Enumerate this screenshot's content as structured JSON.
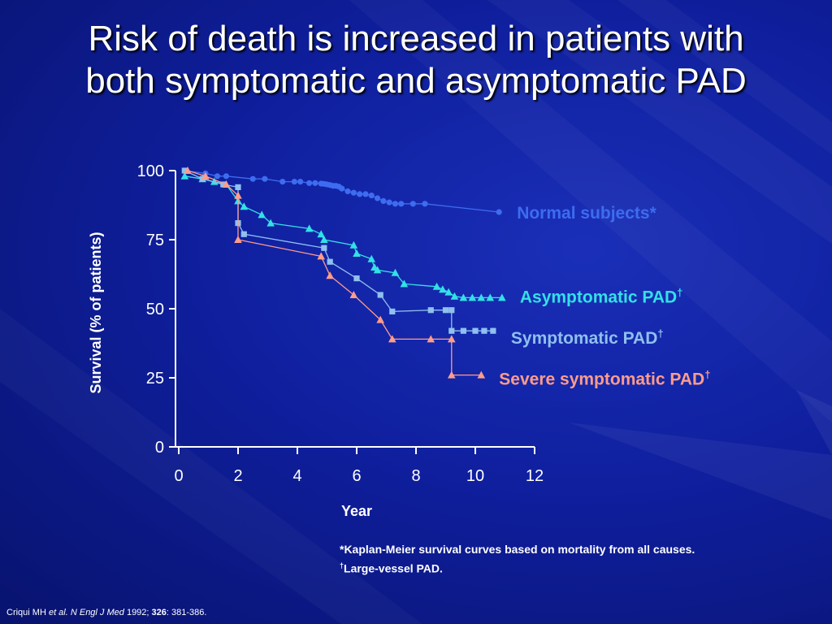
{
  "title": {
    "line1": "Risk of death is increased in patients with",
    "line2": "both symptomatic and asymptomatic PAD"
  },
  "footnote": {
    "line1": "*Kaplan-Meier survival curves based on mortality from all causes.",
    "line2_mark": "†",
    "line2": "Large-vessel PAD."
  },
  "citation": {
    "author": "Criqui MH ",
    "etal": "et al. N Engl J Med",
    "year": " 1992; ",
    "volume": "326",
    "pages": ": 381-386."
  },
  "colors": {
    "normal": "#3d6cf0",
    "asymptomatic": "#33e0e6",
    "symptomatic": "#8fc0ee",
    "severe": "#ff9c8a"
  },
  "chart_data": {
    "type": "line",
    "xlabel": "Year",
    "ylabel": "Survival (% of patients)",
    "xlim": [
      0,
      12
    ],
    "ylim": [
      0,
      100
    ],
    "xticks": [
      0,
      2,
      4,
      6,
      8,
      10,
      12
    ],
    "yticks": [
      0,
      25,
      50,
      75,
      100
    ],
    "series": [
      {
        "name": "Normal subjects*",
        "key": "normal",
        "marker": "circle",
        "x": [
          0.2,
          0.9,
          1.3,
          1.6,
          2.5,
          2.9,
          3.5,
          3.9,
          4.1,
          4.4,
          4.6,
          4.8,
          4.9,
          5.0,
          5.1,
          5.2,
          5.3,
          5.4,
          5.5,
          5.7,
          5.9,
          6.1,
          6.3,
          6.5,
          6.7,
          6.9,
          7.1,
          7.3,
          7.5,
          7.9,
          8.3,
          10.8
        ],
        "y": [
          100,
          99,
          98,
          98,
          97,
          97,
          96,
          96,
          96,
          95.5,
          95.5,
          95.3,
          95.2,
          95,
          94.8,
          94.5,
          94.5,
          94.2,
          93.5,
          92.5,
          92,
          91.5,
          91.5,
          91,
          90,
          89,
          88.5,
          88,
          88,
          88,
          88,
          85
        ],
        "label": "Normal subjects*"
      },
      {
        "name": "Asymptomatic PAD†",
        "key": "asymptomatic",
        "marker": "triangle",
        "x": [
          0.2,
          0.8,
          1.2,
          1.6,
          2.0,
          2.2,
          2.8,
          3.1,
          4.4,
          4.8,
          4.9,
          5.9,
          6.0,
          6.5,
          6.6,
          6.7,
          7.3,
          7.6,
          8.7,
          8.9,
          9.1,
          9.3,
          9.6,
          9.9,
          10.2,
          10.5,
          10.9
        ],
        "y": [
          98,
          97,
          96,
          95,
          89,
          87,
          84,
          81,
          79,
          77,
          75,
          73,
          70,
          68,
          65,
          64,
          63,
          59,
          58,
          57,
          56,
          54.5,
          54,
          54,
          54,
          54,
          54
        ],
        "label": "Asymptomatic PAD",
        "mark": "†"
      },
      {
        "name": "Symptomatic PAD†",
        "key": "symptomatic",
        "marker": "square",
        "x": [
          0.2,
          0.8,
          1.5,
          2.0,
          2.0,
          2.2,
          4.9,
          5.1,
          6.0,
          6.8,
          7.2,
          8.5,
          9.0,
          9.2,
          9.2,
          9.6,
          10.0,
          10.3,
          10.6
        ],
        "y": [
          100,
          97,
          95,
          94,
          81,
          77,
          72,
          67,
          61,
          55,
          49,
          49.5,
          49.5,
          49.5,
          42,
          42,
          42,
          42,
          42
        ],
        "label": "Symptomatic PAD",
        "mark": "†"
      },
      {
        "name": "Severe symptomatic PAD†",
        "key": "severe",
        "marker": "triangle",
        "x": [
          0.3,
          0.9,
          1.6,
          2.0,
          2.0,
          4.8,
          5.1,
          5.9,
          6.8,
          7.2,
          8.5,
          9.2,
          9.2,
          10.2
        ],
        "y": [
          100,
          98,
          95,
          91,
          75,
          69,
          62,
          55,
          46,
          39,
          39,
          39,
          26,
          26
        ],
        "label": "Severe symptomatic PAD",
        "mark": "†"
      }
    ]
  }
}
